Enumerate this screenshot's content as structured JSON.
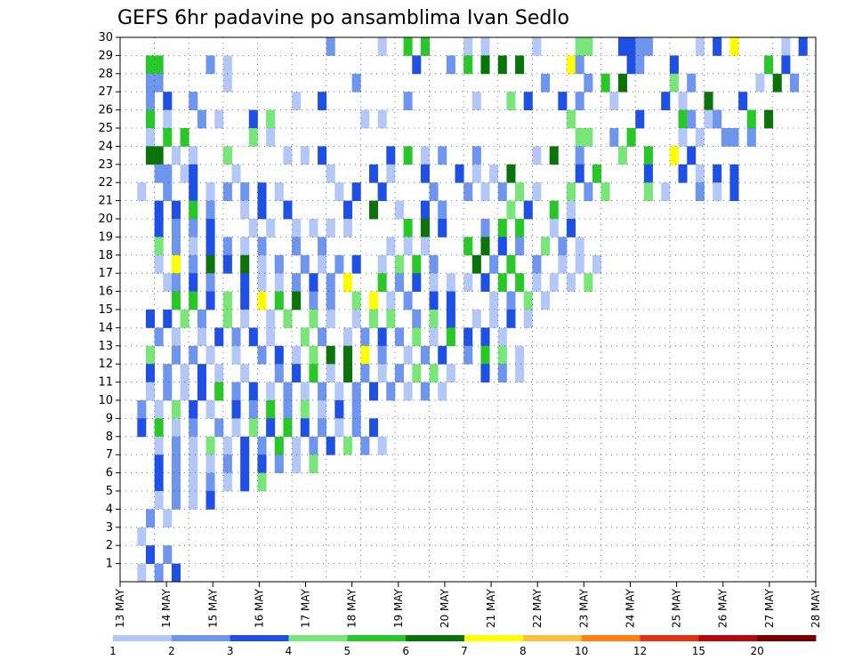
{
  "chart_data": {
    "type": "heatmap",
    "title": "GEFS 6hr padavine po ansamblima Ivan Sedlo",
    "xlabel": "",
    "ylabel": "",
    "x_ticks": [
      "13 MAY",
      "14 MAY",
      "15 MAY",
      "16 MAY",
      "17 MAY",
      "18 MAY",
      "19 MAY",
      "20 MAY",
      "21 MAY",
      "22 MAY",
      "23 MAY",
      "24 MAY",
      "25 MAY",
      "26 MAY",
      "27 MAY",
      "28 MAY"
    ],
    "y_ticks": [
      "1",
      "2",
      "3",
      "4",
      "5",
      "6",
      "7",
      "8",
      "9",
      "10",
      "11",
      "12",
      "13",
      "14",
      "15",
      "16",
      "17",
      "18",
      "19",
      "20",
      "21",
      "22",
      "23",
      "24",
      "25",
      "26",
      "27",
      "28",
      "29",
      "30"
    ],
    "colorbar_labels": [
      "1",
      "2",
      "3",
      "4",
      "5",
      "6",
      "7",
      "8",
      "10",
      "12",
      "15",
      "20"
    ],
    "colorbar_colors": [
      "#b4c8f8",
      "#6e96ee",
      "#1e50e6",
      "#78e678",
      "#28c828",
      "#0a730a",
      "#ffff00",
      "#ffbe3c",
      "#ff7f14",
      "#e63214",
      "#b40a0a",
      "#780000"
    ],
    "grid": "dotted",
    "member_rows": [
      "                        2     1  5 5    1 1     1    44   3322     1 3 7     1 3",
      "   55     2 1                     3   2 5 6 6 6     72     32   3          5 3",
      "   22       1              2                     2    2 5 6     4 2       1 6 2",
      "   2 3  2           1  3         2       1   4 3   3 2   1     3 1  6   3",
      "   5 1   2 1   3 4          1 1                     4       3    52 12   5 6",
      "   1 5 5       4 1                                   44  2 5     1 1  22 2",
      "   66 1 1   4      1 1 3       3 5 1 2   2      1 6  2    4  5  7 3",
      "    22 13    1          1    3 1   3   3 1 1 6       3 5     3   3 1 3 3",
      "  1  2  3 1 2 2 3 1      1 3  3     2   2 1 2 4 1   4 2 4    4 1   2 1 3",
      "    3 3 5 2   1 3  3      3  6  1  3 2       4 3  5 1",
      "    3 2 2 3    1 1  1 1 1 1      5 6 3    2 5 5   1 3",
      "    4 2 1 3 2 1 2   2  2       1 1 1    5 6 3 2  4 2 1",
      "    1 7 2 6 3 6 1 2  2 1 2 3  1 4 5 2    6 2 5  2  1 1 1",
      "     12 3 2   3 1 1 2 3 2 7   5 2 3 1 1 1 3 5 5 1 1 1 4",
      "      5 5 3 4 3 7 5 6 2 2  4 7 1 2  3 3    1 2 4 1",
      "   3 3 4 2  4 1  1 4  4 1  1 4 4  2 4 3  1 1 3 1",
      "    2 1  1 3 2 3 1   4 2  1 2 3 2 4 1 5 3 3 1",
      "   4  2 2 1  1  2 3 1 4 6 6 7 2  1 2 3  2 5 4 1",
      "   3 2 1 3 1  1   2 3 5 1 6 2 1 2 4 4 1   3 2 1",
      "   1 2 1 3 5 2 3 1 2 1 2 1 2 3 2 1 2 1",
      "  2 1 4 3 1  3 2 5 2 4 1 3 2",
      "  3 5 1 2  2 1 4 3 5 3 2 1 2 3",
      "    1 2 1 4 1 3 2 5 1 2 3 4 2 1",
      "    3 2 1 1 2 3 3 2 1 4",
      "    3 2 1 2 1 3 4",
      "    1 2 1 3",
      "   2 1",
      "  1",
      "   3 2",
      "  1 2 3"
    ]
  }
}
